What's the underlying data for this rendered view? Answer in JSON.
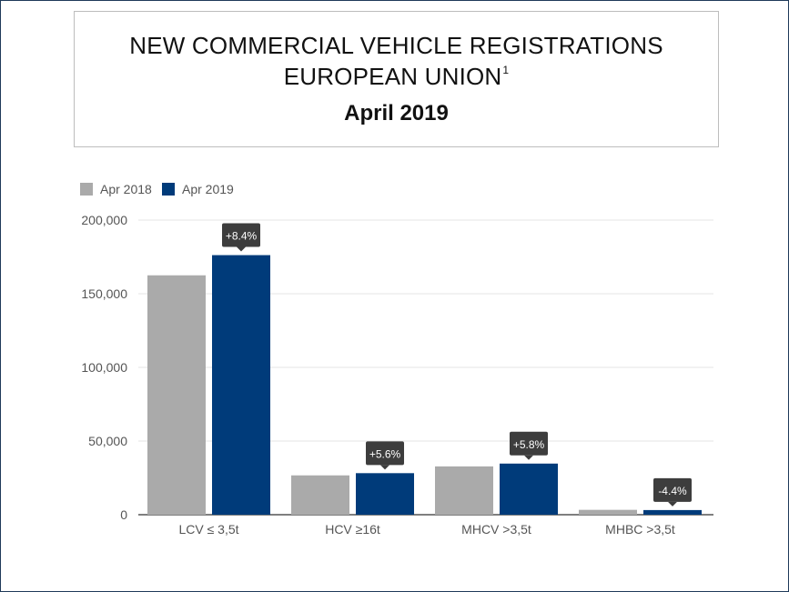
{
  "header": {
    "title_line1": "NEW COMMERCIAL VEHICLE REGISTRATIONS",
    "title_line2": "EUROPEAN UNION",
    "title_footnote": "1",
    "subtitle": "April 2019"
  },
  "colors": {
    "apr2018": "#aaaaaa",
    "apr2019": "#003b7a",
    "label_box": "#3d3d3d",
    "grid": "#e6e6e6",
    "axis_text": "#555555"
  },
  "chart_data": {
    "type": "bar",
    "categories": [
      "LCV ≤ 3,5t",
      "HCV ≥16t",
      "MHCV >3,5t",
      "MHBC >3,5t"
    ],
    "series": [
      {
        "name": "Apr 2018",
        "values": [
          162500,
          26700,
          32800,
          3300
        ]
      },
      {
        "name": "Apr 2019",
        "values": [
          176200,
          28200,
          34700,
          3150
        ]
      }
    ],
    "change_labels": [
      "+8.4%",
      "+5.6%",
      "+5.8%",
      "-4.4%"
    ],
    "y_ticks": [
      "0",
      "50,000",
      "100,000",
      "150,000",
      "200,000"
    ],
    "ylim": [
      0,
      200000
    ],
    "legend": "top-left",
    "grid": true
  }
}
